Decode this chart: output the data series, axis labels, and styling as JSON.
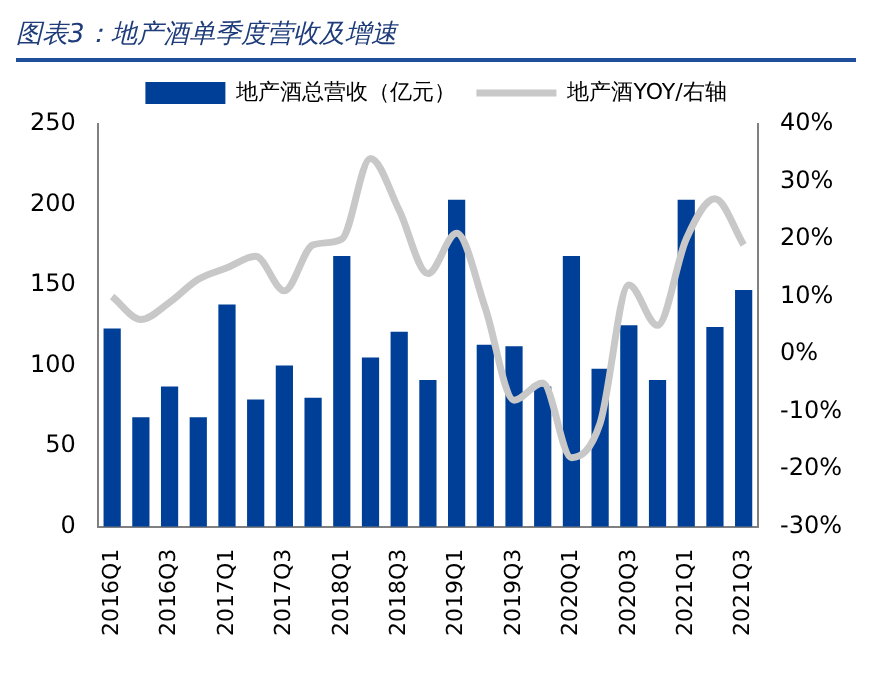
{
  "chart_data": {
    "type": "bar",
    "title": "图表3：地产酒单季度营收及增速",
    "categories": [
      "2016Q1",
      null,
      "2016Q3",
      null,
      "2017Q1",
      null,
      "2017Q3",
      null,
      "2018Q1",
      null,
      "2018Q3",
      null,
      "2019Q1",
      null,
      "2019Q3",
      null,
      "2020Q1",
      null,
      "2020Q3",
      null,
      "2021Q1",
      null,
      "2021Q3"
    ],
    "series": [
      {
        "name": "地产酒总营收（亿元）",
        "color": "#003f98",
        "values": [
          123,
          68,
          87,
          68,
          138,
          79,
          100,
          80,
          168,
          105,
          121,
          91,
          203,
          113,
          112,
          87,
          168,
          98,
          125,
          91,
          203,
          124,
          147
        ]
      },
      {
        "name": "地产酒YOY/右轴",
        "type": "line",
        "axis": "y2",
        "color": "#c8c8c8",
        "values": [
          10,
          6,
          9,
          13,
          15,
          17,
          11,
          19,
          20,
          34,
          25,
          14,
          21,
          8,
          -8,
          -5,
          -18,
          -12,
          12,
          5,
          20,
          27,
          19
        ]
      }
    ],
    "ylim": [
      0,
      250
    ],
    "yticks": [
      0,
      50,
      100,
      150,
      200,
      250
    ],
    "y2lim": [
      -30,
      40
    ],
    "y2ticks": [
      {
        "value": -30,
        "label": "-30%"
      },
      {
        "value": -20,
        "label": "-20%"
      },
      {
        "value": -10,
        "label": "-10%"
      },
      {
        "value": 0,
        "label": "0%"
      },
      {
        "value": 10,
        "label": "10%"
      },
      {
        "value": 20,
        "label": "20%"
      },
      {
        "value": 30,
        "label": "30%"
      },
      {
        "value": 40,
        "label": "40%"
      }
    ],
    "grid": false,
    "legend": "top",
    "marker": "none",
    "line_style": "solid"
  }
}
